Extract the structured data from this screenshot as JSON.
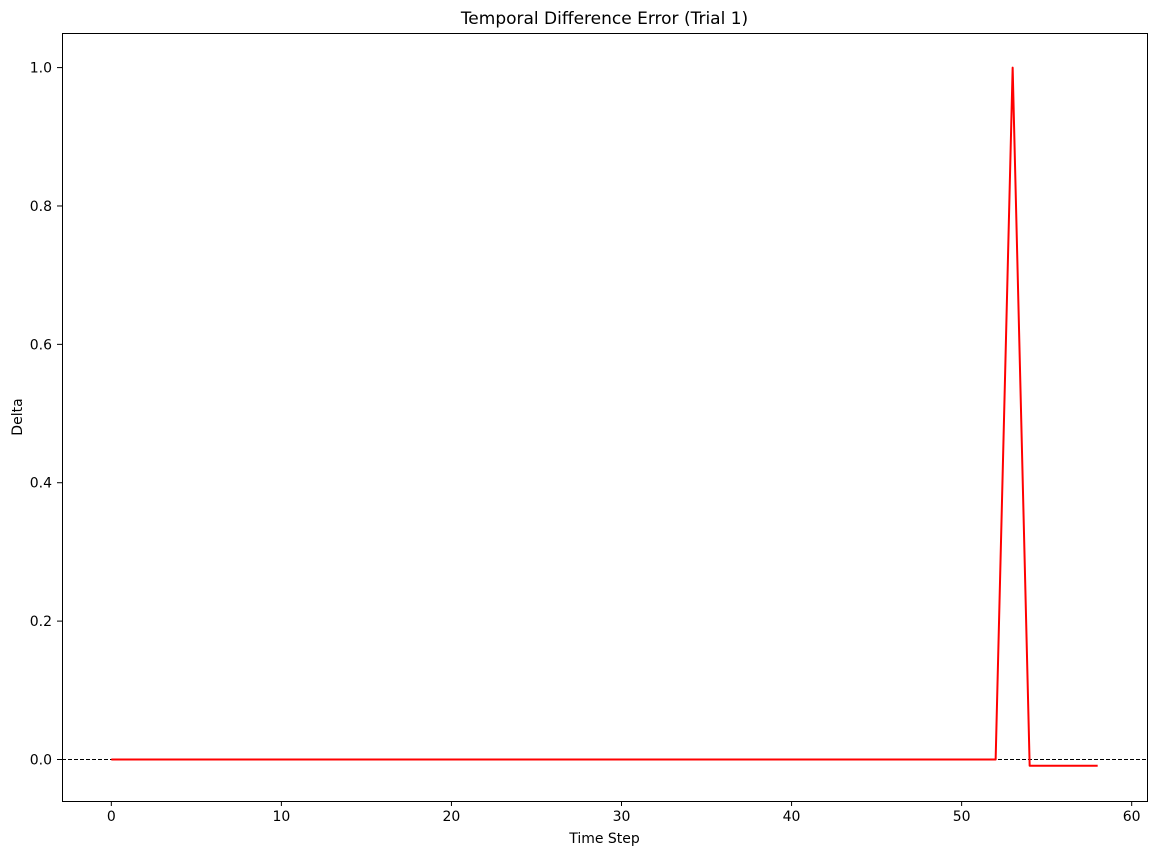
{
  "chart_data": {
    "type": "line",
    "title": "Temporal Difference Error (Trial 1)",
    "xlabel": "Time Step",
    "ylabel": "Delta",
    "xlim": [
      -2.9,
      60.9
    ],
    "ylim": [
      -0.06,
      1.05
    ],
    "xticks": [
      0,
      10,
      20,
      30,
      40,
      50,
      60
    ],
    "xtick_labels": [
      "0",
      "10",
      "20",
      "30",
      "40",
      "50",
      "60"
    ],
    "yticks": [
      0.0,
      0.2,
      0.4,
      0.6,
      0.8,
      1.0
    ],
    "ytick_labels": [
      "0.0",
      "0.2",
      "0.4",
      "0.6",
      "0.8",
      "1.0"
    ],
    "grid": false,
    "reference_line": {
      "y": 0,
      "style": "dashed",
      "color": "#000000"
    },
    "series": [
      {
        "color": "#ff0000",
        "x": [
          0,
          1,
          2,
          3,
          4,
          5,
          6,
          7,
          8,
          9,
          10,
          11,
          12,
          13,
          14,
          15,
          16,
          17,
          18,
          19,
          20,
          21,
          22,
          23,
          24,
          25,
          26,
          27,
          28,
          29,
          30,
          31,
          32,
          33,
          34,
          35,
          36,
          37,
          38,
          39,
          40,
          41,
          42,
          43,
          44,
          45,
          46,
          47,
          48,
          49,
          50,
          51,
          52,
          53,
          54,
          55,
          56,
          57,
          58
        ],
        "y": [
          0,
          0,
          0,
          0,
          0,
          0,
          0,
          0,
          0,
          0,
          0,
          0,
          0,
          0,
          0,
          0,
          0,
          0,
          0,
          0,
          0,
          0,
          0,
          0,
          0,
          0,
          0,
          0,
          0,
          0,
          0,
          0,
          0,
          0,
          0,
          0,
          0,
          0,
          0,
          0,
          0,
          0,
          0,
          0,
          0,
          0,
          0,
          0,
          0,
          0,
          0,
          0,
          0,
          1.0,
          -0.009,
          -0.009,
          -0.009,
          -0.009,
          -0.009
        ]
      }
    ]
  }
}
